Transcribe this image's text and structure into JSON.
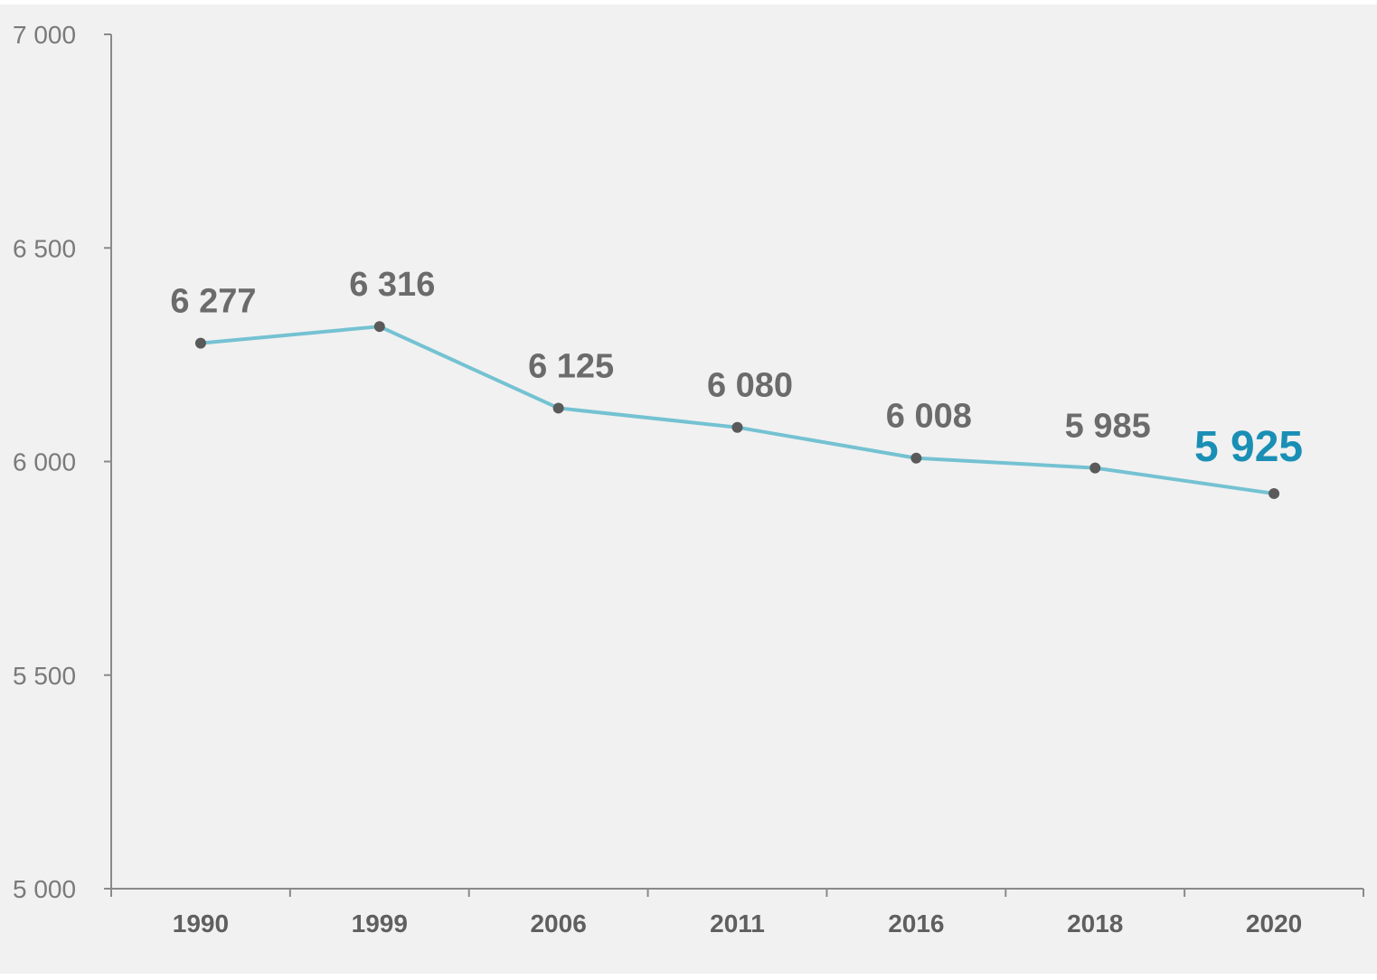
{
  "chart_data": {
    "type": "line",
    "title": "",
    "xlabel": "",
    "ylabel": "",
    "categories": [
      "1990",
      "1999",
      "2006",
      "2011",
      "2016",
      "2018",
      "2020"
    ],
    "series": [
      {
        "values": [
          6277,
          6316,
          6125,
          6080,
          6008,
          5985,
          5925
        ]
      }
    ],
    "data_labels": [
      "6 277",
      "6 316",
      "6 125",
      "6 080",
      "6 008",
      "5 985",
      "5 925"
    ],
    "highlighted_point_index": 6,
    "ylim": [
      5000,
      7000
    ],
    "yticks": [
      5000,
      5500,
      6000,
      6500,
      7000
    ],
    "ytick_labels": [
      "5 000",
      "5 500",
      "6 000",
      "6 500",
      "7 000"
    ],
    "grid": false,
    "legend": "none",
    "colors": {
      "background": "#f1f1f1",
      "line": "#74c2d2",
      "marker": "#5a5a5a",
      "axis": "#8a8a8a",
      "label": "#6b6b6b",
      "highlight": "#1a8fb5"
    }
  }
}
